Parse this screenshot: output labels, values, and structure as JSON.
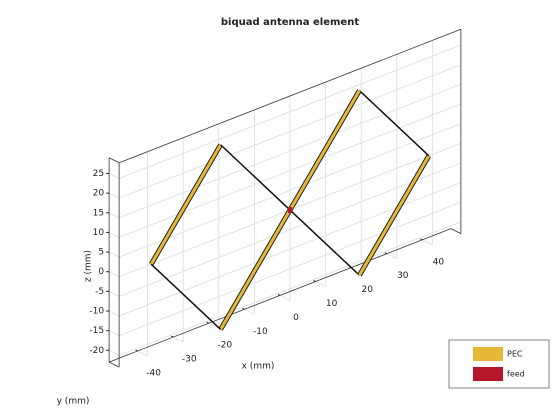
{
  "chart_data": {
    "type": "antenna3d",
    "title": "biquad antenna element",
    "xlabel": "x (mm)",
    "ylabel": "y (mm)",
    "zlabel": "z (mm)",
    "xlim": [
      -48,
      48
    ],
    "zlim": [
      -23,
      29
    ],
    "xticks": [
      -40,
      -30,
      -20,
      -10,
      0,
      10,
      20,
      30,
      40
    ],
    "zticks": [
      -20,
      -15,
      -10,
      -5,
      0,
      5,
      10,
      15,
      20,
      25
    ],
    "grid": true,
    "x": [
      -39,
      -19.5,
      19.5,
      39,
      19.5,
      -19.5,
      -39
    ],
    "z": [
      0,
      23.5,
      -23.5,
      0,
      23.5,
      -23.5,
      0
    ],
    "series": [
      {
        "name": "PEC",
        "color": "#e6b83a"
      },
      {
        "name": "feed",
        "color": "#b5172a"
      }
    ]
  }
}
